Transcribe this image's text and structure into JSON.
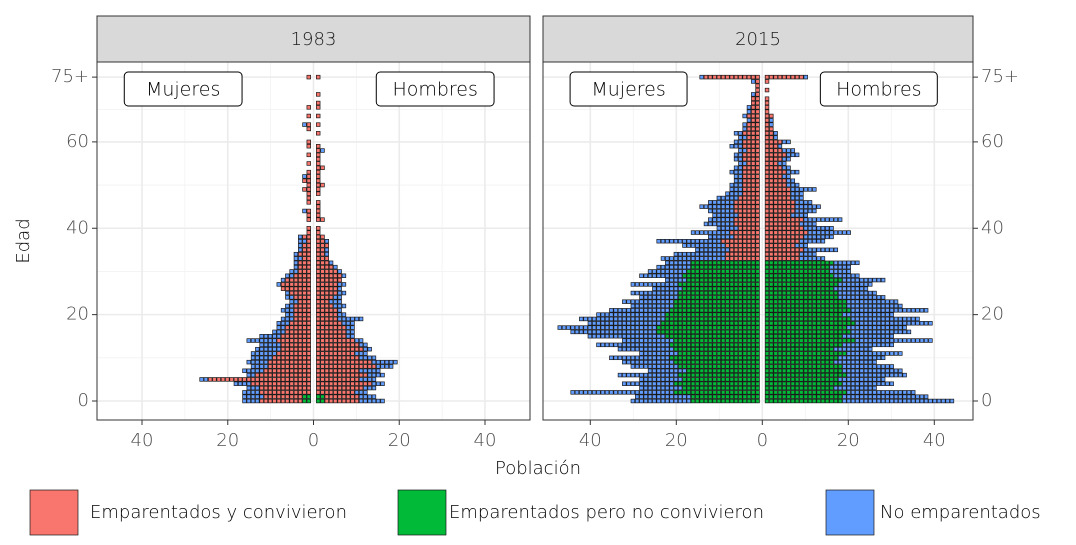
{
  "chart_data": {
    "type": "pyramid",
    "x_label": "Población",
    "y_label": "Edad",
    "annotations": {
      "left": "Mujeres",
      "right": "Hombres"
    },
    "ylim": [
      -4.4,
      78.5
    ],
    "yticks": [
      0,
      20,
      40,
      60,
      {
        "value": 75,
        "label": "75+"
      }
    ],
    "grid": true,
    "series": [
      {
        "name": "Emparentados y convivieron",
        "color": "#f8766d"
      },
      {
        "name": "Emparentados pero no convivieron",
        "color": "#00ba38"
      },
      {
        "name": "No emparentados",
        "color": "#619cff"
      }
    ],
    "panels": [
      {
        "title": "1983",
        "xlim": [
          -50.5,
          50.5
        ],
        "xticks": [
          {
            "value": -40,
            "label": "40"
          },
          {
            "value": -20,
            "label": "20"
          },
          0,
          20,
          40
        ],
        "female": [
          [
            10,
            9,
            12,
            12,
            14,
            24,
            13,
            11,
            10,
            10,
            9,
            8,
            7,
            7,
            8,
            7,
            6,
            6,
            5,
            4,
            4,
            4,
            4,
            3,
            4,
            5,
            7,
            7,
            6,
            4,
            3,
            3,
            3,
            2,
            3,
            2,
            2,
            1,
            2,
            1,
            1,
            0,
            1,
            1,
            1,
            0,
            1,
            1,
            1,
            2,
            1,
            2,
            1,
            1,
            0,
            1,
            0,
            1,
            0,
            1,
            1,
            0,
            0,
            1,
            1,
            0,
            1,
            0,
            1,
            0,
            0,
            0,
            0,
            0,
            0,
            1
          ],
          [
            2,
            2,
            0,
            0,
            0,
            0,
            0,
            0,
            0,
            0,
            0,
            0,
            0,
            0,
            0,
            0,
            0,
            0,
            0,
            0,
            0,
            0,
            0,
            0,
            0,
            0,
            0,
            0,
            0,
            0,
            0,
            0,
            0,
            0,
            0,
            0,
            0,
            0,
            0,
            0,
            0,
            0,
            0,
            0,
            0,
            0,
            0,
            0,
            0,
            0,
            0,
            0,
            0,
            0,
            0,
            0,
            0,
            0,
            0,
            0,
            0,
            0,
            0,
            0,
            0,
            0,
            0,
            0,
            0,
            0,
            0,
            0,
            0,
            0,
            0,
            0
          ],
          [
            4,
            5,
            4,
            3,
            4,
            2,
            2,
            5,
            4,
            5,
            5,
            6,
            6,
            5,
            7,
            5,
            3,
            2,
            3,
            3,
            2,
            3,
            2,
            2,
            2,
            1,
            0,
            1,
            1,
            2,
            2,
            1,
            1,
            2,
            1,
            1,
            1,
            2,
            1,
            0,
            0,
            0,
            0,
            0,
            1,
            0,
            0,
            0,
            0,
            0,
            0,
            0,
            1,
            0,
            0,
            0,
            0,
            0,
            0,
            0,
            0,
            0,
            0,
            0,
            1,
            0,
            0,
            0,
            0,
            0,
            0,
            0,
            0,
            0,
            0,
            0
          ]
        ],
        "male": [
          [
            8,
            8,
            9,
            11,
            13,
            10,
            12,
            10,
            14,
            13,
            10,
            9,
            11,
            10,
            9,
            7,
            7,
            7,
            6,
            5,
            5,
            5,
            4,
            3,
            4,
            5,
            5,
            5,
            6,
            6,
            5,
            4,
            3,
            3,
            2,
            2,
            3,
            2,
            2,
            1,
            1,
            0,
            2,
            1,
            1,
            1,
            1,
            0,
            1,
            1,
            2,
            1,
            1,
            1,
            2,
            1,
            1,
            1,
            1,
            1,
            0,
            0,
            1,
            0,
            1,
            0,
            1,
            0,
            1,
            1,
            0,
            1,
            0,
            0,
            0,
            1
          ],
          [
            2,
            2,
            0,
            0,
            0,
            0,
            0,
            0,
            0,
            0,
            0,
            0,
            0,
            0,
            0,
            0,
            0,
            0,
            0,
            0,
            0,
            0,
            0,
            0,
            0,
            0,
            0,
            0,
            0,
            0,
            0,
            0,
            0,
            0,
            0,
            0,
            0,
            0,
            0,
            0,
            0,
            0,
            0,
            0,
            0,
            0,
            0,
            0,
            0,
            0,
            0,
            0,
            0,
            0,
            0,
            0,
            0,
            0,
            0,
            0,
            0,
            0,
            0,
            0,
            0,
            0,
            0,
            0,
            0,
            0,
            0,
            0,
            0,
            0,
            0,
            0
          ],
          [
            6,
            4,
            3,
            3,
            3,
            4,
            4,
            5,
            4,
            6,
            4,
            3,
            2,
            2,
            2,
            2,
            2,
            2,
            3,
            6,
            2,
            1,
            3,
            3,
            2,
            2,
            1,
            2,
            0,
            1,
            1,
            1,
            1,
            0,
            1,
            1,
            0,
            1,
            0,
            0,
            0,
            0,
            0,
            0,
            0,
            0,
            0,
            0,
            0,
            0,
            0,
            0,
            0,
            0,
            0,
            0,
            0,
            0,
            1,
            0,
            0,
            0,
            0,
            0,
            0,
            0,
            0,
            0,
            0,
            0,
            0,
            0,
            0,
            0,
            0,
            0
          ]
        ]
      },
      {
        "title": "2015",
        "xlim": [
          -51,
          49
        ],
        "xticks": [
          {
            "value": -40,
            "label": "40"
          },
          {
            "value": -20,
            "label": "20"
          },
          0,
          20,
          40
        ],
        "female": [
          [
            0,
            0,
            0,
            0,
            0,
            0,
            0,
            0,
            0,
            0,
            0,
            0,
            0,
            0,
            0,
            0,
            0,
            0,
            0,
            0,
            0,
            0,
            0,
            0,
            0,
            0,
            0,
            0,
            0,
            0,
            0,
            0,
            0,
            8,
            8,
            7,
            8,
            9,
            6,
            7,
            5,
            6,
            6,
            5,
            6,
            6,
            6,
            5,
            4,
            4,
            4,
            4,
            4,
            4,
            4,
            3,
            4,
            4,
            3,
            4,
            4,
            3,
            4,
            3,
            3,
            2,
            3,
            2,
            2,
            2,
            2,
            1,
            1,
            1,
            1,
            13
          ],
          [
            16,
            16,
            20,
            18,
            20,
            18,
            19,
            17,
            19,
            20,
            21,
            19,
            20,
            21,
            20,
            22,
            24,
            24,
            23,
            22,
            22,
            21,
            20,
            20,
            19,
            19,
            18,
            19,
            17,
            18,
            17,
            16,
            16,
            0,
            0,
            0,
            0,
            0,
            0,
            0,
            0,
            0,
            0,
            0,
            0,
            0,
            0,
            0,
            0,
            0,
            0,
            0,
            0,
            0,
            0,
            0,
            0,
            0,
            0,
            0,
            0,
            0,
            0,
            0,
            0,
            0,
            0,
            0,
            0,
            0,
            0,
            0,
            0,
            0,
            0,
            0
          ],
          [
            14,
            13,
            24,
            10,
            12,
            10,
            14,
            9,
            11,
            12,
            14,
            9,
            13,
            17,
            12,
            18,
            20,
            23,
            17,
            20,
            16,
            14,
            10,
            12,
            9,
            11,
            7,
            11,
            5,
            10,
            9,
            8,
            6,
            15,
            12,
            8,
            10,
            15,
            6,
            9,
            5,
            7,
            6,
            6,
            6,
            8,
            6,
            5,
            4,
            3,
            3,
            2,
            2,
            3,
            2,
            2,
            2,
            2,
            2,
            3,
            2,
            2,
            2,
            1,
            1,
            1,
            1,
            1,
            1,
            0,
            0,
            1,
            0,
            0,
            1,
            1
          ]
        ],
        "male": [
          [
            0,
            0,
            0,
            0,
            0,
            0,
            0,
            0,
            0,
            0,
            0,
            0,
            0,
            0,
            0,
            0,
            0,
            0,
            0,
            0,
            0,
            0,
            0,
            0,
            0,
            0,
            0,
            0,
            0,
            0,
            0,
            0,
            0,
            8,
            8,
            9,
            7,
            8,
            9,
            10,
            9,
            8,
            9,
            6,
            7,
            7,
            7,
            6,
            6,
            6,
            5,
            5,
            4,
            5,
            4,
            3,
            4,
            5,
            4,
            3,
            4,
            2,
            2,
            2,
            1,
            1,
            2,
            1,
            1,
            1,
            1,
            0,
            1,
            0,
            1,
            9
          ],
          [
            18,
            18,
            19,
            16,
            18,
            17,
            19,
            18,
            18,
            16,
            17,
            19,
            16,
            18,
            21,
            18,
            20,
            19,
            21,
            20,
            18,
            20,
            19,
            19,
            17,
            17,
            16,
            17,
            18,
            16,
            15,
            15,
            16,
            0,
            0,
            0,
            0,
            0,
            0,
            0,
            0,
            0,
            0,
            0,
            0,
            0,
            0,
            0,
            0,
            0,
            0,
            0,
            0,
            0,
            0,
            0,
            0,
            0,
            0,
            0,
            0,
            0,
            0,
            0,
            0,
            0,
            0,
            0,
            0,
            0,
            0,
            0,
            0,
            0,
            0,
            0
          ],
          [
            26,
            20,
            16,
            10,
            12,
            11,
            14,
            14,
            12,
            10,
            11,
            13,
            9,
            12,
            18,
            12,
            14,
            14,
            18,
            16,
            12,
            18,
            13,
            12,
            11,
            9,
            8,
            8,
            10,
            6,
            5,
            5,
            6,
            6,
            4,
            8,
            3,
            6,
            7,
            10,
            7,
            4,
            9,
            4,
            5,
            6,
            4,
            3,
            3,
            6,
            3,
            2,
            2,
            3,
            2,
            2,
            2,
            3,
            3,
            1,
            2,
            1,
            1,
            0,
            1,
            1,
            0,
            0,
            0,
            0,
            0,
            0,
            0,
            0,
            0,
            1
          ]
        ]
      }
    ]
  }
}
